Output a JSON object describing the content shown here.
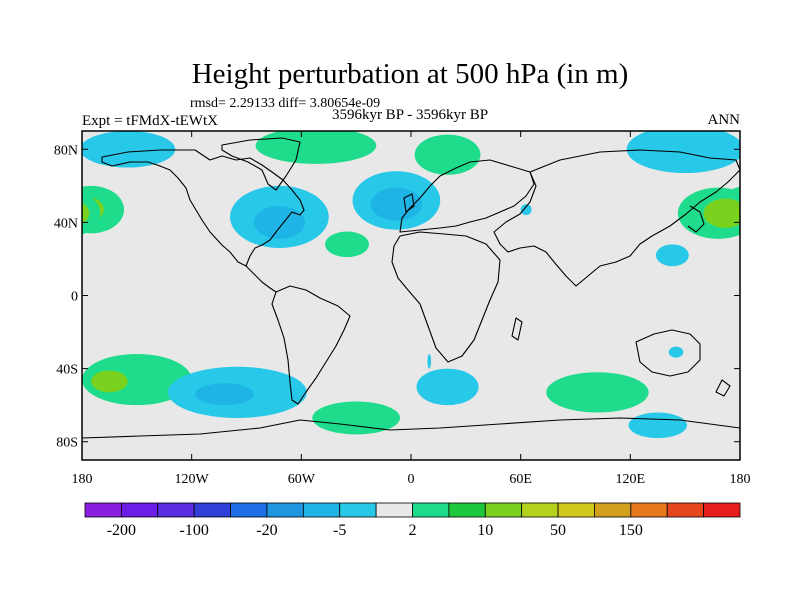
{
  "title": "Height perturbation at 500 hPa (in m)",
  "stats_line": "rmsd= 2.29133 diff= 3.80654e-09",
  "experiment_label": "Expt = tFMdX-tEWtX",
  "period_label": "3596kyr BP - 3596kyr BP",
  "season_label": "ANN",
  "lat_ticks": [
    {
      "label": "80N",
      "lat": 80
    },
    {
      "label": "40N",
      "lat": 40
    },
    {
      "label": "0",
      "lat": 0
    },
    {
      "label": "40S",
      "lat": -40
    },
    {
      "label": "80S",
      "lat": -80
    }
  ],
  "lon_ticks": [
    {
      "label": "180",
      "lon": -180
    },
    {
      "label": "120W",
      "lon": -120
    },
    {
      "label": "60W",
      "lon": -60
    },
    {
      "label": "0",
      "lon": 0
    },
    {
      "label": "60E",
      "lon": 60
    },
    {
      "label": "120E",
      "lon": 120
    },
    {
      "label": "180",
      "lon": 180
    }
  ],
  "map": {
    "lon_range": [
      -180,
      180
    ],
    "lat_range": [
      -90,
      90
    ],
    "background_color": "#e8e8e8"
  },
  "colorbar": {
    "colors": [
      "#8a1ee0",
      "#6a1ee6",
      "#5a2de0",
      "#2f3fd8",
      "#1e6ee6",
      "#1e96e0",
      "#1eb4e6",
      "#28c8e8",
      "#e8e8e8",
      "#1edc8c",
      "#1ec83c",
      "#7ad21e",
      "#b4d21e",
      "#d2c81e",
      "#d2a01e",
      "#e6781e",
      "#e6461e",
      "#e61e1e"
    ],
    "labels": [
      "-200",
      "-100",
      "-20",
      "-5",
      "2",
      "10",
      "50",
      "150"
    ]
  },
  "anomalies": [
    {
      "lon": -155,
      "lat": 80,
      "rx": 26,
      "ry": 10,
      "level": "light-blue"
    },
    {
      "lon": -175,
      "lat": 47,
      "rx": 18,
      "ry": 13,
      "level": "green"
    },
    {
      "lon": -178,
      "lat": 47,
      "rx": 10,
      "ry": 7,
      "level": "yellow-green"
    },
    {
      "lon": -52,
      "lat": 82,
      "rx": 33,
      "ry": 10,
      "level": "green"
    },
    {
      "lon": -72,
      "lat": 43,
      "rx": 27,
      "ry": 17,
      "level": "light-blue"
    },
    {
      "lon": -72,
      "lat": 40,
      "rx": 14,
      "ry": 9,
      "level": "blue"
    },
    {
      "lon": -35,
      "lat": 28,
      "rx": 12,
      "ry": 7,
      "level": "green"
    },
    {
      "lon": -8,
      "lat": 52,
      "rx": 24,
      "ry": 16,
      "level": "light-blue"
    },
    {
      "lon": -8,
      "lat": 50,
      "rx": 14,
      "ry": 9,
      "level": "blue"
    },
    {
      "lon": 20,
      "lat": 77,
      "rx": 18,
      "ry": 11,
      "level": "green"
    },
    {
      "lon": 63,
      "lat": 47,
      "rx": 3,
      "ry": 3,
      "level": "light-blue"
    },
    {
      "lon": 150,
      "lat": 80,
      "rx": 32,
      "ry": 13,
      "level": "light-blue"
    },
    {
      "lon": 168,
      "lat": 45,
      "rx": 22,
      "ry": 14,
      "level": "green"
    },
    {
      "lon": 172,
      "lat": 45,
      "rx": 12,
      "ry": 8,
      "level": "yellow-green"
    },
    {
      "lon": 143,
      "lat": 22,
      "rx": 9,
      "ry": 6,
      "level": "light-blue"
    },
    {
      "lon": 145,
      "lat": -31,
      "rx": 4,
      "ry": 3,
      "level": "light-blue"
    },
    {
      "lon": -150,
      "lat": -46,
      "rx": 30,
      "ry": 14,
      "level": "green"
    },
    {
      "lon": -165,
      "lat": -47,
      "rx": 10,
      "ry": 6,
      "level": "yellow-green"
    },
    {
      "lon": -95,
      "lat": -53,
      "rx": 38,
      "ry": 14,
      "level": "light-blue"
    },
    {
      "lon": -102,
      "lat": -54,
      "rx": 16,
      "ry": 6,
      "level": "blue"
    },
    {
      "lon": -30,
      "lat": -67,
      "rx": 24,
      "ry": 9,
      "level": "green"
    },
    {
      "lon": 20,
      "lat": -50,
      "rx": 17,
      "ry": 10,
      "level": "light-blue"
    },
    {
      "lon": 102,
      "lat": -53,
      "rx": 28,
      "ry": 11,
      "level": "green"
    },
    {
      "lon": 135,
      "lat": -71,
      "rx": 16,
      "ry": 7,
      "level": "light-blue"
    },
    {
      "lon": 10,
      "lat": -36,
      "rx": 1,
      "ry": 4,
      "level": "light-blue"
    }
  ],
  "level_colors": {
    "light-blue": "#28c8e8",
    "blue": "#1eb4e6",
    "green": "#1edc8c",
    "yellow-green": "#7ad21e"
  }
}
